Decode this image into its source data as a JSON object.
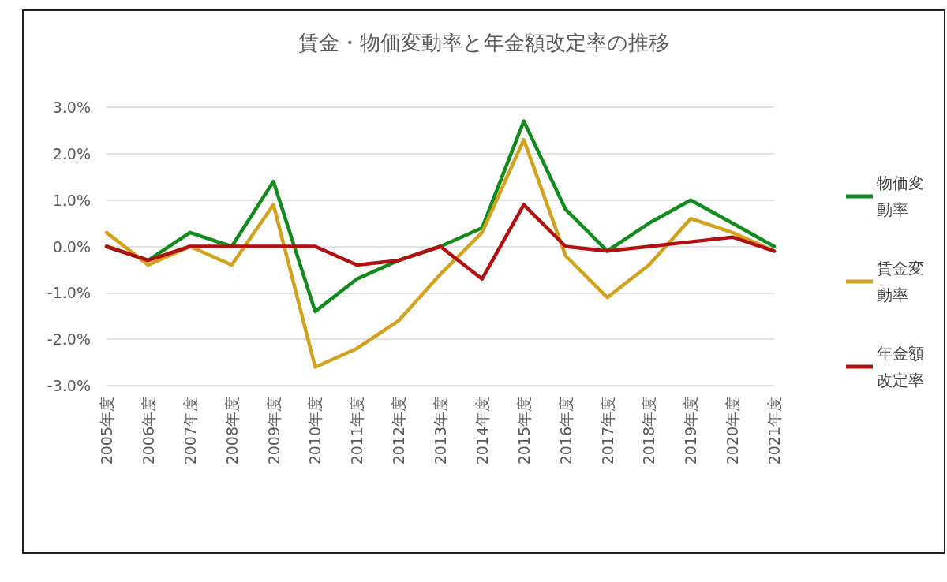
{
  "chart_data": {
    "type": "line",
    "title": "賃金・物価変動率と年金額改定率の推移",
    "categories": [
      "2005年度",
      "2006年度",
      "2007年度",
      "2008年度",
      "2009年度",
      "2010年度",
      "2011年度",
      "2012年度",
      "2013年度",
      "2014年度",
      "2015年度",
      "2016年度",
      "2017年度",
      "2018年度",
      "2019年度",
      "2020年度",
      "2021年度"
    ],
    "series": [
      {
        "name": "物価変動率",
        "color": "#138a1c",
        "values": [
          0.0,
          -0.3,
          0.3,
          0.0,
          1.4,
          -1.4,
          -0.7,
          -0.3,
          0.0,
          0.4,
          2.7,
          0.8,
          -0.1,
          0.5,
          1.0,
          0.5,
          0.0
        ]
      },
      {
        "name": "賃金変動率",
        "color": "#d2a21f",
        "values": [
          0.3,
          -0.4,
          0.0,
          -0.4,
          0.9,
          -2.6,
          -2.2,
          -1.6,
          -0.6,
          0.3,
          2.3,
          -0.2,
          -1.1,
          -0.4,
          0.6,
          0.3,
          -0.1
        ]
      },
      {
        "name": "年金額改定率",
        "color": "#b0100f",
        "values": [
          0.0,
          -0.3,
          0.0,
          0.0,
          0.0,
          0.0,
          -0.4,
          -0.3,
          0.0,
          -0.7,
          0.9,
          0.0,
          -0.1,
          0.0,
          0.1,
          0.2,
          -0.1
        ]
      }
    ],
    "ylim": [
      -3,
      3
    ],
    "yticks": [
      {
        "value": -3,
        "label": "-3.0%"
      },
      {
        "value": -2,
        "label": "-2.0%"
      },
      {
        "value": -1,
        "label": "-1.0%"
      },
      {
        "value": 0,
        "label": "0.0%"
      },
      {
        "value": 1,
        "label": "1.0%"
      },
      {
        "value": 2,
        "label": "2.0%"
      },
      {
        "value": 3,
        "label": "3.0%"
      }
    ],
    "grid": "y",
    "legend": "right",
    "marker": "none",
    "line_style": "solid"
  }
}
